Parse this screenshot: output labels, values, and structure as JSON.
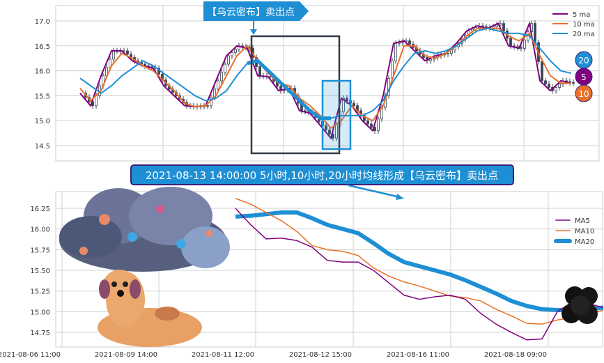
{
  "colors": {
    "ma5": "#800080",
    "ma10": "#e8702a",
    "ma20": "#1e8fd5",
    "candle": "#3a4656",
    "grid": "#d0d0d0",
    "banner": "#1e8fd5",
    "banner_border": "#3b1f7a"
  },
  "top_callout": "【乌云密布】卖出点",
  "banner": "2021-08-13 14:00:00 5小时,10小时,20小时均线形成【乌云密布】卖出点",
  "badges": [
    "20",
    "5",
    "10"
  ],
  "chart_data": [
    {
      "type": "line",
      "subtype": "candlestick with moving averages",
      "ylim": [
        14.2,
        17.3
      ],
      "yticks": [
        "17.0",
        "16.5",
        "16.0",
        "15.5",
        "15.0",
        "14.5"
      ],
      "yvals": [
        17.0,
        16.5,
        16.0,
        15.5,
        15.0,
        14.5
      ],
      "grid": true,
      "legend": "top-right",
      "series": [
        {
          "name": "5 ma",
          "values": [
            15.55,
            15.3,
            15.9,
            16.4,
            16.4,
            16.2,
            16.1,
            16.05,
            15.7,
            15.5,
            15.3,
            15.28,
            15.3,
            15.8,
            16.3,
            16.5,
            16.45,
            15.9,
            15.88,
            15.6,
            15.65,
            15.2,
            15.15,
            14.9,
            14.65,
            15.45,
            15.3,
            15.0,
            14.8,
            15.5,
            16.55,
            16.6,
            16.4,
            16.2,
            16.3,
            16.35,
            16.55,
            16.8,
            16.9,
            16.85,
            16.95,
            16.5,
            16.45,
            16.95,
            15.8,
            15.6,
            15.8,
            15.75
          ]
        },
        {
          "name": "10 ma",
          "values": [
            15.65,
            15.4,
            15.6,
            16.1,
            16.35,
            16.25,
            16.1,
            16.0,
            15.8,
            15.6,
            15.35,
            15.28,
            15.3,
            15.5,
            15.9,
            16.3,
            16.5,
            16.2,
            15.95,
            15.75,
            15.7,
            15.45,
            15.3,
            15.1,
            14.85,
            15.0,
            15.3,
            15.1,
            15.0,
            15.3,
            15.9,
            16.5,
            16.5,
            16.3,
            16.25,
            16.35,
            16.5,
            16.7,
            16.85,
            16.85,
            16.85,
            16.7,
            16.6,
            16.75,
            16.3,
            15.9,
            15.75,
            15.75
          ]
        },
        {
          "name": "20 ma",
          "values": [
            15.85,
            15.7,
            15.55,
            15.7,
            15.9,
            16.05,
            16.2,
            16.1,
            15.95,
            15.8,
            15.65,
            15.5,
            15.4,
            15.45,
            15.6,
            15.9,
            16.15,
            16.2,
            16.0,
            15.8,
            15.6,
            15.4,
            15.2,
            15.05,
            15.05,
            15.1,
            15.1,
            15.1,
            15.2,
            15.4,
            15.8,
            16.1,
            16.35,
            16.4,
            16.35,
            16.4,
            16.5,
            16.65,
            16.8,
            16.85,
            16.8,
            16.75,
            16.75,
            16.7,
            16.45,
            16.2,
            16.0,
            15.95
          ]
        }
      ]
    },
    {
      "type": "line",
      "ylim": [
        14.6,
        16.45
      ],
      "yticks": [
        "16.25",
        "16.00",
        "15.75",
        "15.50",
        "15.25",
        "15.00",
        "14.75"
      ],
      "yvals": [
        16.25,
        16.0,
        15.75,
        15.5,
        15.25,
        15.0,
        14.75
      ],
      "xticks": [
        "2021-08-06 11:00",
        "2021-08-09 14:00",
        "2021-08-11 12:00",
        "2021-08-12 15:00",
        "2021-08-16 11:00",
        "2021-08-18 09:00"
      ],
      "grid": true,
      "legend": "top-right",
      "series": [
        {
          "name": "MA5",
          "values": [
            16.25,
            16.05,
            15.88,
            15.89,
            15.86,
            15.78,
            15.62,
            15.6,
            15.6,
            15.5,
            15.35,
            15.2,
            15.15,
            15.18,
            15.2,
            15.15,
            14.98,
            14.85,
            14.75,
            14.66,
            14.67,
            15.0,
            15.12,
            15.1,
            15.05
          ]
        },
        {
          "name": "MA10",
          "values": [
            16.37,
            16.3,
            16.2,
            16.1,
            15.97,
            15.8,
            15.75,
            15.73,
            15.68,
            15.53,
            15.43,
            15.36,
            15.31,
            15.25,
            15.19,
            15.17,
            15.13,
            15.03,
            14.95,
            14.86,
            14.85,
            14.9,
            14.93,
            14.97,
            15.02
          ]
        },
        {
          "name": "MA20",
          "values": [
            16.15,
            16.16,
            16.18,
            16.2,
            16.2,
            16.13,
            16.05,
            16.0,
            15.95,
            15.83,
            15.7,
            15.6,
            15.55,
            15.5,
            15.45,
            15.38,
            15.3,
            15.22,
            15.13,
            15.07,
            15.03,
            15.02,
            15.02,
            15.03,
            15.05
          ]
        }
      ]
    }
  ]
}
